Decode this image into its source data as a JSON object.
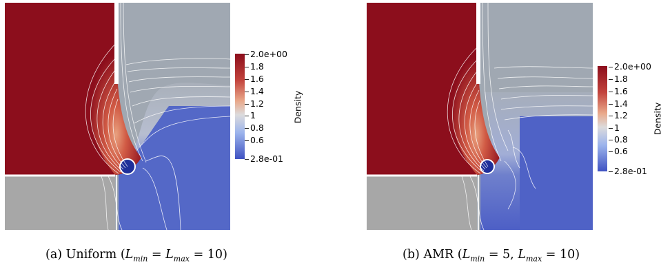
{
  "colorbar": {
    "title": "Density",
    "ticks": [
      "2.0e+00",
      "1.8",
      "1.6",
      "1.4",
      "1.2",
      "1",
      "0.8",
      "0.6",
      "2.8e-01"
    ],
    "min": 0.28,
    "max": 2.0,
    "colors": {
      "high": "#8c0e1c",
      "mid": "#dcdbdc",
      "low": "#3f52c2",
      "upper_gray": "#a0a8b2",
      "lower_gray": "#a7a7a7"
    }
  },
  "figures": [
    {
      "label": "(a)",
      "caption_text": "Uniform",
      "caption_math": {
        "lhs1": "L",
        "sub1": "min",
        "eq": "=",
        "lhs2": "L",
        "sub2": "max",
        "rhs": "= 10"
      }
    },
    {
      "label": "(b)",
      "caption_text": "AMR",
      "caption_math": {
        "lhs1": "L",
        "sub1": "min",
        "eq": "= 5,",
        "lhs2": "L",
        "sub2": "max",
        "rhs": "= 10"
      }
    }
  ]
}
